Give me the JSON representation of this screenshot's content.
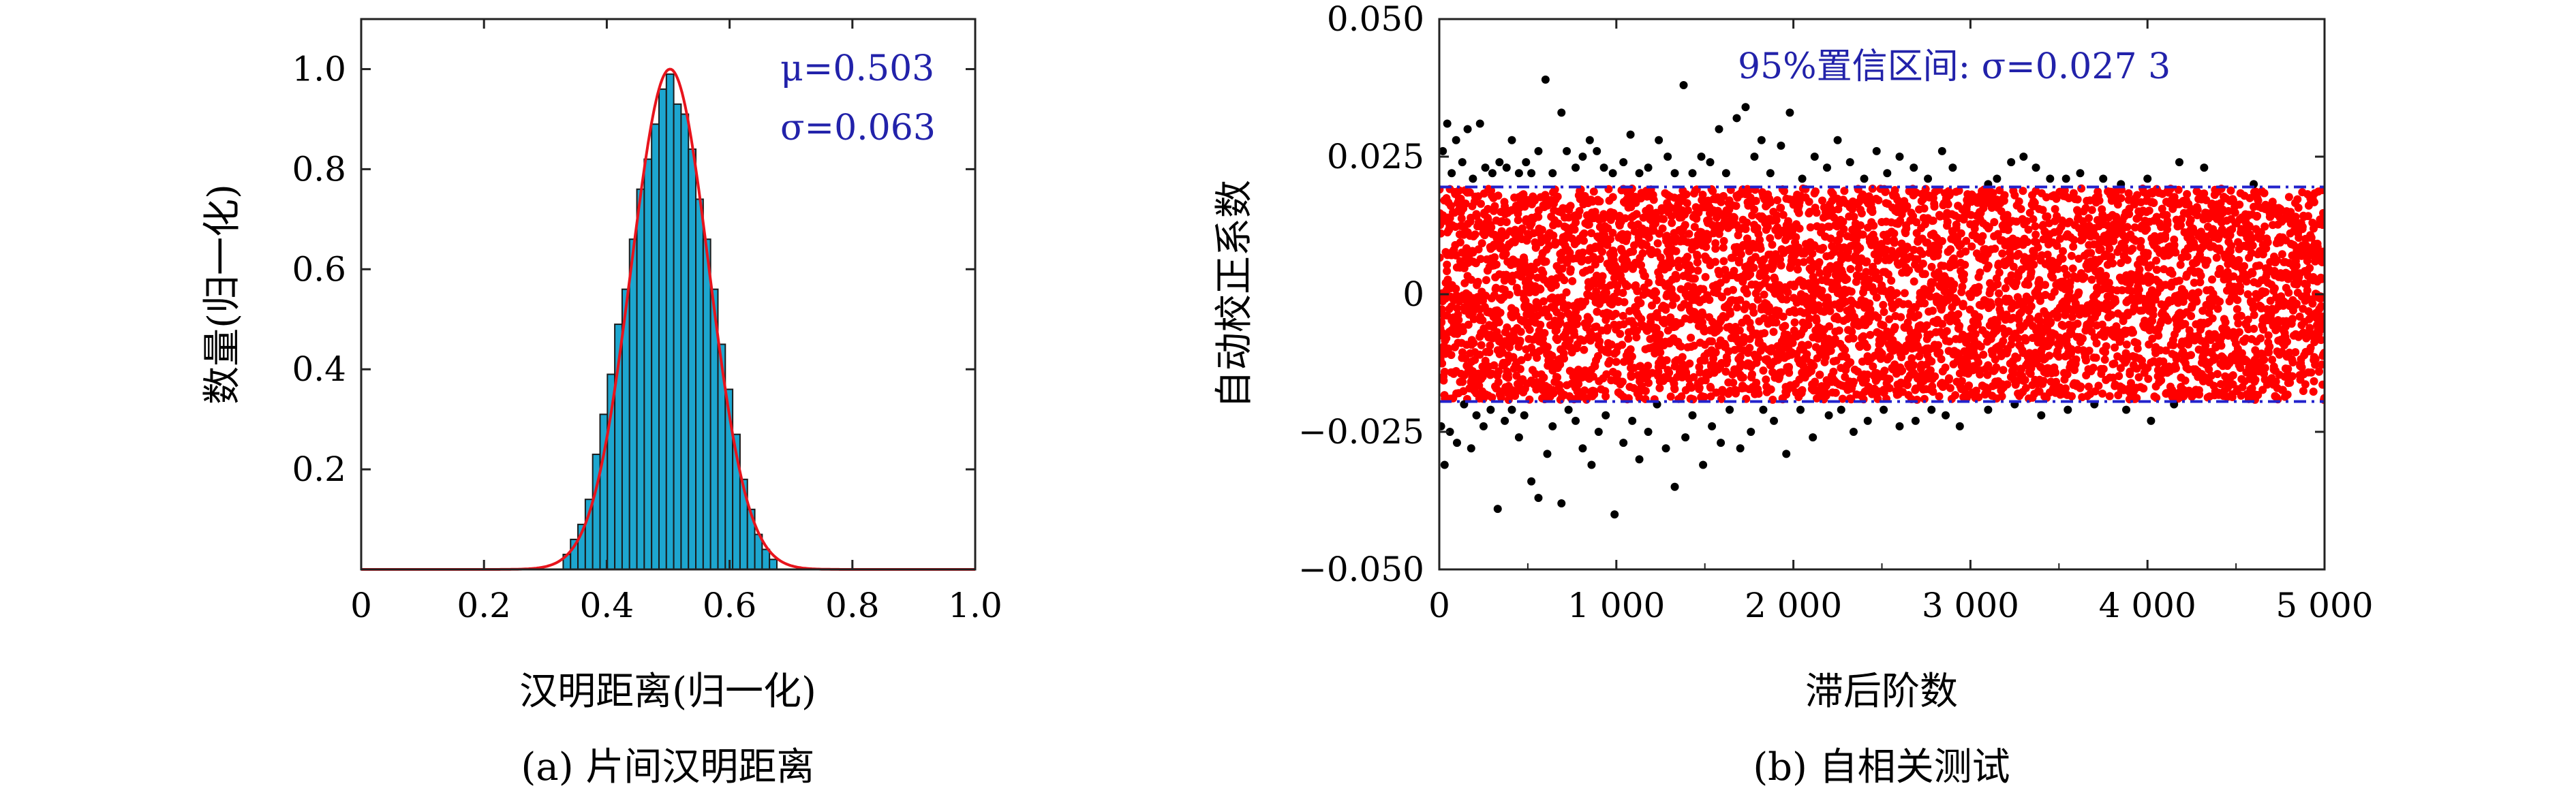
{
  "chart_data": [
    {
      "type": "bar",
      "xlabel": "汉明距离(归一化)",
      "ylabel": "数量(归一化)",
      "caption": "(a) 片间汉明距离",
      "xlim": [
        0,
        1.0
      ],
      "ylim": [
        0,
        1.1
      ],
      "xticks": [
        "0",
        "0.2",
        "0.4",
        "0.6",
        "0.8",
        "1.0"
      ],
      "yticks": [
        "0.2",
        "0.4",
        "0.6",
        "0.8",
        "1.0"
      ],
      "annotations": [
        "μ=0.503",
        "σ=0.063"
      ],
      "mu": 0.503,
      "sigma": 0.063,
      "bin_width": 0.012,
      "bins_x": [
        0.335,
        0.347,
        0.359,
        0.371,
        0.383,
        0.395,
        0.407,
        0.419,
        0.431,
        0.443,
        0.455,
        0.467,
        0.479,
        0.491,
        0.503,
        0.515,
        0.527,
        0.539,
        0.551,
        0.563,
        0.575,
        0.587,
        0.599,
        0.611,
        0.623,
        0.635,
        0.647,
        0.659,
        0.671
      ],
      "bins_y": [
        0.03,
        0.06,
        0.09,
        0.14,
        0.23,
        0.31,
        0.39,
        0.49,
        0.56,
        0.66,
        0.76,
        0.82,
        0.89,
        0.96,
        0.99,
        0.93,
        0.91,
        0.84,
        0.74,
        0.66,
        0.56,
        0.45,
        0.36,
        0.27,
        0.18,
        0.12,
        0.07,
        0.04,
        0.02
      ],
      "bar_color": "#1da6cf",
      "curve_color": "#e8141c",
      "series": [
        {
          "name": "",
          "kind": "histogram"
        },
        {
          "name": "",
          "kind": "gaussian-fit"
        }
      ]
    },
    {
      "type": "scatter",
      "xlabel": "滞后阶数",
      "ylabel": "自动校正系数",
      "caption": "(b) 自相关测试",
      "xlim": [
        0,
        5000
      ],
      "ylim": [
        -0.05,
        0.05
      ],
      "xticks": [
        "0",
        "1 000",
        "2 000",
        "3 000",
        "4 000",
        "5 000"
      ],
      "yticks": [
        "0.050",
        "0.025",
        "0",
        "−0.025",
        "−0.050"
      ],
      "annotation": "95%置信区间: σ=0.027 3",
      "confidence_band": [
        -0.0195,
        0.0195
      ],
      "point_count": 5000,
      "inside_color": "#ff0000",
      "outside_color": "#000000",
      "band_color": "#2222cc",
      "outliers_above": [
        [
          20,
          0.026
        ],
        [
          45,
          0.031
        ],
        [
          70,
          0.022
        ],
        [
          95,
          0.028
        ],
        [
          130,
          0.024
        ],
        [
          160,
          0.03
        ],
        [
          190,
          0.021
        ],
        [
          230,
          0.031
        ],
        [
          260,
          0.023
        ],
        [
          300,
          0.022
        ],
        [
          340,
          0.024
        ],
        [
          380,
          0.023
        ],
        [
          410,
          0.028
        ],
        [
          450,
          0.022
        ],
        [
          490,
          0.024
        ],
        [
          520,
          0.022
        ],
        [
          560,
          0.026
        ],
        [
          600,
          0.039
        ],
        [
          640,
          0.022
        ],
        [
          690,
          0.033
        ],
        [
          720,
          0.026
        ],
        [
          770,
          0.023
        ],
        [
          810,
          0.025
        ],
        [
          850,
          0.028
        ],
        [
          890,
          0.026
        ],
        [
          930,
          0.023
        ],
        [
          980,
          0.022
        ],
        [
          1040,
          0.024
        ],
        [
          1080,
          0.029
        ],
        [
          1130,
          0.022
        ],
        [
          1180,
          0.023
        ],
        [
          1240,
          0.028
        ],
        [
          1290,
          0.025
        ],
        [
          1330,
          0.022
        ],
        [
          1380,
          0.038
        ],
        [
          1430,
          0.022
        ],
        [
          1480,
          0.025
        ],
        [
          1530,
          0.024
        ],
        [
          1580,
          0.03
        ],
        [
          1620,
          0.022
        ],
        [
          1680,
          0.032
        ],
        [
          1730,
          0.034
        ],
        [
          1780,
          0.025
        ],
        [
          1820,
          0.028
        ],
        [
          1870,
          0.022
        ],
        [
          1930,
          0.027
        ],
        [
          1980,
          0.033
        ],
        [
          2050,
          0.021
        ],
        [
          2120,
          0.025
        ],
        [
          2190,
          0.023
        ],
        [
          2250,
          0.028
        ],
        [
          2320,
          0.024
        ],
        [
          2400,
          0.021
        ],
        [
          2470,
          0.026
        ],
        [
          2530,
          0.022
        ],
        [
          2600,
          0.025
        ],
        [
          2680,
          0.023
        ],
        [
          2760,
          0.021
        ],
        [
          2840,
          0.026
        ],
        [
          2900,
          0.023
        ],
        [
          3100,
          0.02
        ],
        [
          3150,
          0.021
        ],
        [
          3230,
          0.024
        ],
        [
          3300,
          0.025
        ],
        [
          3370,
          0.023
        ],
        [
          3450,
          0.021
        ],
        [
          3540,
          0.021
        ],
        [
          3620,
          0.022
        ],
        [
          3750,
          0.021
        ],
        [
          3850,
          0.02
        ],
        [
          4000,
          0.021
        ],
        [
          4180,
          0.024
        ],
        [
          4320,
          0.023
        ],
        [
          4600,
          0.02
        ]
      ],
      "outliers_below": [
        [
          10,
          -0.024
        ],
        [
          30,
          -0.031
        ],
        [
          60,
          -0.025
        ],
        [
          100,
          -0.027
        ],
        [
          140,
          -0.02
        ],
        [
          180,
          -0.028
        ],
        [
          210,
          -0.022
        ],
        [
          250,
          -0.024
        ],
        [
          290,
          -0.021
        ],
        [
          330,
          -0.039
        ],
        [
          370,
          -0.023
        ],
        [
          410,
          -0.021
        ],
        [
          450,
          -0.026
        ],
        [
          480,
          -0.022
        ],
        [
          520,
          -0.034
        ],
        [
          560,
          -0.037
        ],
        [
          610,
          -0.029
        ],
        [
          640,
          -0.024
        ],
        [
          690,
          -0.038
        ],
        [
          730,
          -0.021
        ],
        [
          770,
          -0.023
        ],
        [
          810,
          -0.028
        ],
        [
          860,
          -0.031
        ],
        [
          900,
          -0.025
        ],
        [
          940,
          -0.022
        ],
        [
          990,
          -0.04
        ],
        [
          1040,
          -0.027
        ],
        [
          1090,
          -0.023
        ],
        [
          1130,
          -0.03
        ],
        [
          1180,
          -0.025
        ],
        [
          1230,
          -0.02
        ],
        [
          1280,
          -0.028
        ],
        [
          1330,
          -0.035
        ],
        [
          1390,
          -0.026
        ],
        [
          1430,
          -0.022
        ],
        [
          1490,
          -0.031
        ],
        [
          1540,
          -0.024
        ],
        [
          1590,
          -0.027
        ],
        [
          1640,
          -0.021
        ],
        [
          1700,
          -0.028
        ],
        [
          1760,
          -0.025
        ],
        [
          1830,
          -0.021
        ],
        [
          1890,
          -0.023
        ],
        [
          1960,
          -0.029
        ],
        [
          2040,
          -0.021
        ],
        [
          2110,
          -0.026
        ],
        [
          2200,
          -0.022
        ],
        [
          2270,
          -0.021
        ],
        [
          2340,
          -0.025
        ],
        [
          2420,
          -0.023
        ],
        [
          2510,
          -0.021
        ],
        [
          2600,
          -0.024
        ],
        [
          2690,
          -0.023
        ],
        [
          2780,
          -0.021
        ],
        [
          2860,
          -0.022
        ],
        [
          2940,
          -0.024
        ],
        [
          3100,
          -0.021
        ],
        [
          3250,
          -0.02
        ],
        [
          3400,
          -0.022
        ],
        [
          3550,
          -0.021
        ],
        [
          3700,
          -0.02
        ],
        [
          3880,
          -0.021
        ],
        [
          4020,
          -0.023
        ],
        [
          4150,
          -0.02
        ]
      ]
    }
  ]
}
